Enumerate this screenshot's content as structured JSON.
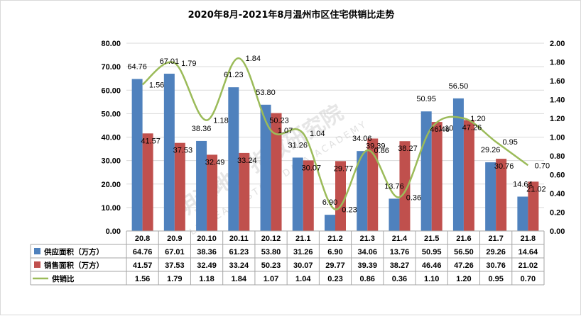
{
  "chart_data": {
    "type": "bar",
    "title": "2020年8月-2021年8月温州市区住宅供销比走势",
    "categories": [
      "20.8",
      "20.9",
      "20.10",
      "20.11",
      "20.12",
      "21.1",
      "21.2",
      "21.3",
      "21.4",
      "21.5",
      "21.6",
      "21.7",
      "21.8"
    ],
    "series": [
      {
        "name": "供应面积（万方）",
        "type": "bar",
        "axis": "left",
        "color": "#4f81bd",
        "values": [
          64.76,
          67.01,
          38.36,
          61.23,
          53.8,
          31.26,
          6.9,
          34.06,
          13.76,
          50.95,
          56.5,
          29.26,
          14.64
        ],
        "labels": [
          "64.76",
          "67.01",
          "38.36",
          "61.23",
          "53.80",
          "31.26",
          "6.90",
          "34.06",
          "13.76",
          "50.95",
          "56.50",
          "29.26",
          "14.64"
        ]
      },
      {
        "name": "销售面积（万方）",
        "type": "bar",
        "axis": "left",
        "color": "#c0504d",
        "values": [
          41.57,
          37.53,
          32.49,
          33.24,
          50.23,
          30.07,
          29.77,
          39.39,
          38.27,
          46.46,
          47.26,
          30.76,
          21.02
        ],
        "labels": [
          "41.57",
          "37.53",
          "32.49",
          "33.24",
          "50.23",
          "30.07",
          "29.77",
          "39.39",
          "38.27",
          "46.46",
          "47.26",
          "30.76",
          "21.02"
        ]
      },
      {
        "name": "供销比",
        "type": "line",
        "axis": "right",
        "color": "#9bbb59",
        "values": [
          1.56,
          1.79,
          1.18,
          1.84,
          1.07,
          1.04,
          0.23,
          0.86,
          0.36,
          1.1,
          1.2,
          0.95,
          0.7
        ],
        "labels": [
          "1.56",
          "1.79",
          "1.18",
          "1.84",
          "1.07",
          "1.04",
          "0.23",
          "0.86",
          "0.36",
          "1.10",
          "1.20",
          "0.95",
          "0.70"
        ]
      }
    ],
    "y_left": {
      "ylim": [
        0,
        80
      ],
      "ticks": [
        "0.00",
        "10.00",
        "20.00",
        "30.00",
        "40.00",
        "50.00",
        "60.00",
        "70.00",
        "80.00"
      ]
    },
    "y_right": {
      "ylim": [
        0,
        2
      ],
      "ticks": [
        "0.00",
        "0.20",
        "0.40",
        "0.60",
        "0.80",
        "1.00",
        "1.20",
        "1.40",
        "1.60",
        "1.80",
        "2.00"
      ]
    },
    "grid": true,
    "legend": "data-table-below"
  },
  "watermark": {
    "text": "明源地产指数研究院",
    "subtext": "LZ REAL ESTATE DATA ACADEMY"
  }
}
